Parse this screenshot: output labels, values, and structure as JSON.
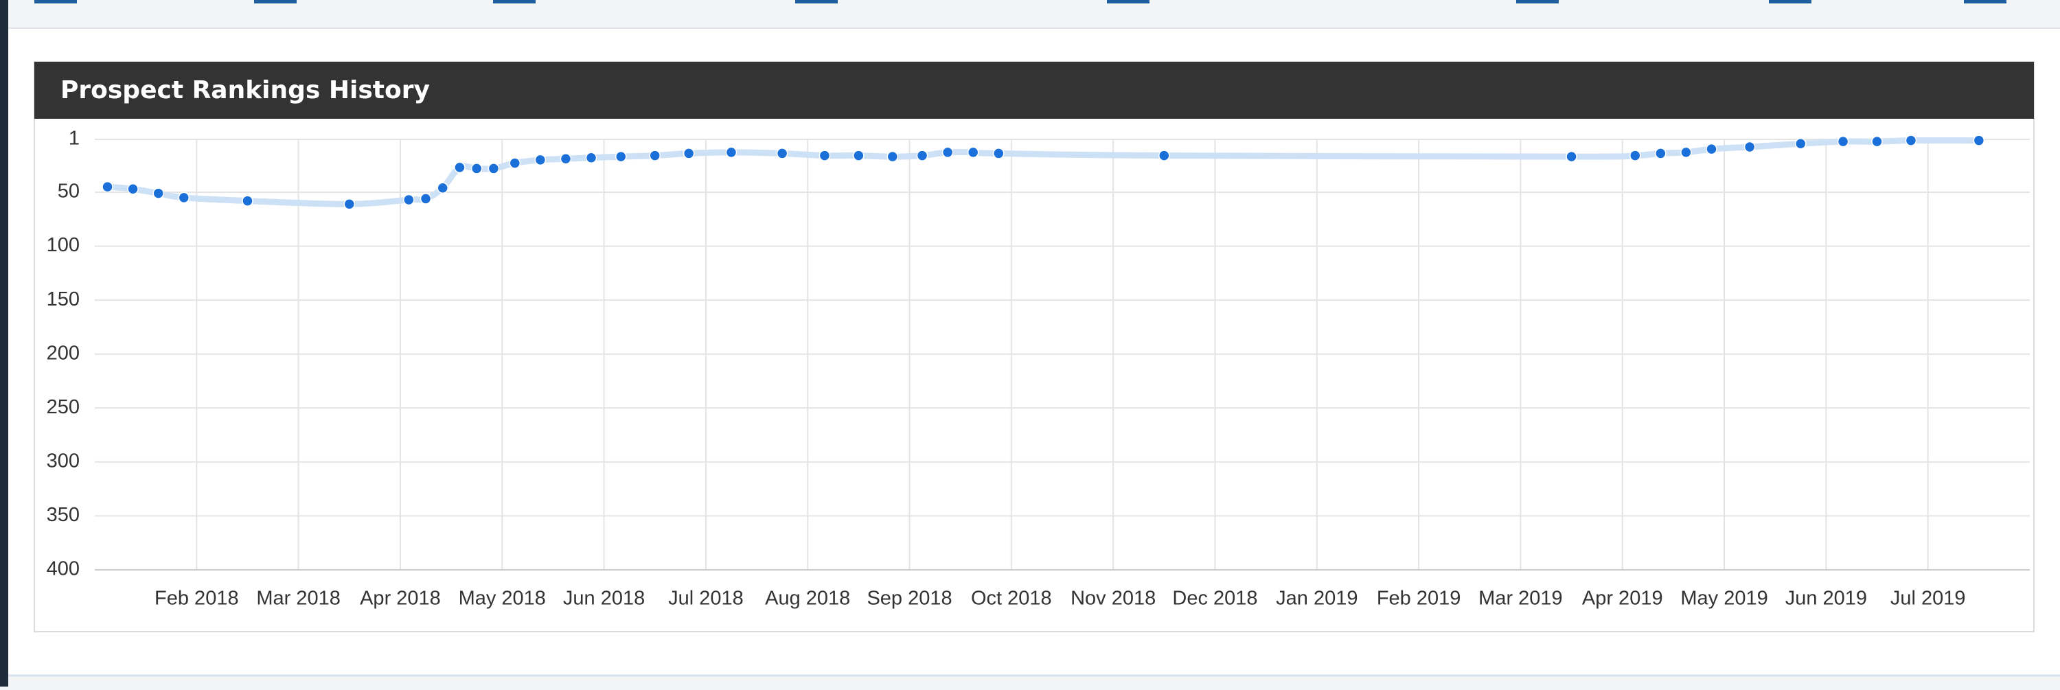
{
  "chart_data": {
    "type": "line",
    "title": "Prospect Rankings History",
    "x": [
      "2018-01",
      "2018-01",
      "2018-01",
      "2018-01",
      "2018-02",
      "2018-03",
      "2018-04",
      "2018-04",
      "2018-04",
      "2018-04",
      "2018-04",
      "2018-04",
      "2018-05",
      "2018-05",
      "2018-05",
      "2018-05",
      "2018-06",
      "2018-06",
      "2018-06",
      "2018-07",
      "2018-07",
      "2018-08",
      "2018-08",
      "2018-08",
      "2018-09",
      "2018-09",
      "2018-09",
      "2018-09",
      "2018-11",
      "2019-03",
      "2019-04",
      "2019-04",
      "2019-04",
      "2019-04",
      "2019-05",
      "2019-05",
      "2019-06",
      "2019-06",
      "2019-06",
      "2019-07"
    ],
    "values": [
      45,
      47,
      51,
      55,
      58,
      61,
      57,
      56,
      46,
      27,
      28,
      28,
      23,
      20,
      19,
      18,
      17,
      16,
      14,
      13,
      14,
      16,
      16,
      17,
      16,
      13,
      13,
      14,
      16,
      17,
      16,
      14,
      13,
      10,
      8,
      5,
      3,
      3,
      2,
      2
    ],
    "color": "#1a6fd8",
    "line_color": "#cde1f6",
    "xlim": [
      "2018-01",
      "2019-07"
    ],
    "xticks": [
      {
        "value": "2018-02",
        "label": "Feb 2018"
      },
      {
        "value": "2018-03",
        "label": "Mar 2018"
      },
      {
        "value": "2018-04",
        "label": "Apr 2018"
      },
      {
        "value": "2018-05",
        "label": "May 2018"
      },
      {
        "value": "2018-06",
        "label": "Jun 2018"
      },
      {
        "value": "2018-07",
        "label": "Jul 2018"
      },
      {
        "value": "2018-08",
        "label": "Aug 2018"
      },
      {
        "value": "2018-09",
        "label": "Sep 2018"
      },
      {
        "value": "2018-10",
        "label": "Oct 2018"
      },
      {
        "value": "2018-11",
        "label": "Nov 2018"
      },
      {
        "value": "2018-12",
        "label": "Dec 2018"
      },
      {
        "value": "2019-01",
        "label": "Jan 2019"
      },
      {
        "value": "2019-02",
        "label": "Feb 2019"
      },
      {
        "value": "2019-03",
        "label": "Mar 2019"
      },
      {
        "value": "2019-04",
        "label": "Apr 2019"
      },
      {
        "value": "2019-05",
        "label": "May 2019"
      },
      {
        "value": "2019-06",
        "label": "Jun 2019"
      },
      {
        "value": "2019-07",
        "label": "Jul 2019"
      }
    ],
    "ylim": [
      1,
      400
    ],
    "yticks": [
      1,
      50,
      100,
      150,
      200,
      250,
      300,
      350,
      400
    ],
    "y_reversed": true,
    "grid": true
  }
}
